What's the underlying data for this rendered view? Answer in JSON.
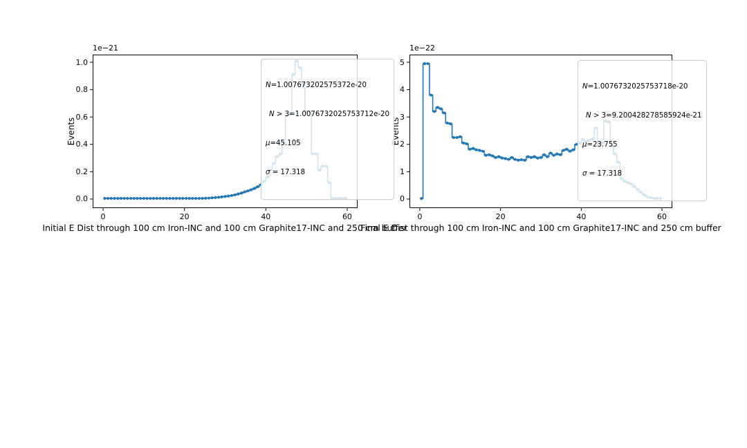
{
  "figure": {
    "background": "#ffffff",
    "accent_color": "#1f77b4"
  },
  "chart_data": [
    {
      "type": "line",
      "subtype": "step-mid-histogram-with-point-markers",
      "title": "Initial E Dist through 100 cm Iron-INC and 100 cm Graphite17-INC and 250 cm buffer",
      "ylabel": "Events",
      "xlabel": "",
      "offset_label": "1e−21",
      "color": "#1f77b4",
      "grid": false,
      "xticks": [
        0,
        20,
        40,
        60
      ],
      "yticks": [
        0.0,
        0.2,
        0.4,
        0.6,
        0.8,
        1.0
      ],
      "ytick_labels": [
        "0.0",
        "0.2",
        "0.4",
        "0.6",
        "0.8",
        "1.0"
      ],
      "xlim": [
        -2.56,
        62.56
      ],
      "ylim": [
        -0.066,
        1.056
      ],
      "x_start": 0.4,
      "bin_width": 0.8,
      "values": [
        0.005,
        0.005,
        0.005,
        0.005,
        0.005,
        0.005,
        0.005,
        0.005,
        0.005,
        0.005,
        0.005,
        0.005,
        0.005,
        0.005,
        0.005,
        0.005,
        0.005,
        0.005,
        0.005,
        0.005,
        0.005,
        0.005,
        0.005,
        0.005,
        0.005,
        0.005,
        0.005,
        0.005,
        0.005,
        0.005,
        0.005,
        0.006,
        0.007,
        0.009,
        0.011,
        0.013,
        0.016,
        0.019,
        0.022,
        0.026,
        0.031,
        0.037,
        0.044,
        0.052,
        0.06,
        0.068,
        0.078,
        0.09,
        0.105,
        0.13,
        0.16,
        0.21,
        0.26,
        0.31,
        0.33,
        0.41,
        0.61,
        0.62,
        0.91,
        1.01,
        0.96,
        0.84,
        0.64,
        0.64,
        0.33,
        0.33,
        0.21,
        0.24,
        0.24,
        0.12,
        0.005,
        0.005,
        0.005,
        0.005,
        0.005
      ],
      "legend": {
        "position": "upper-right-inside-overflowing",
        "lines": [
          {
            "sym": "N",
            "rest": "=1.007673202575372e-20"
          },
          {
            "sym": "N",
            "rest": " > 3=1.0076732025753712e-20"
          },
          {
            "sym": "μ",
            "rest": "=45.105"
          },
          {
            "sym": "σ",
            "rest": " = 17.318"
          }
        ]
      }
    },
    {
      "type": "line",
      "subtype": "step-mid-histogram-with-point-markers",
      "title": "Final E Dist through 100 cm Iron-INC and 100 cm Graphite17-INC and 250 cm buffer",
      "ylabel": "Events",
      "xlabel": "",
      "offset_label": "1e−22",
      "color": "#1f77b4",
      "grid": false,
      "xticks": [
        0,
        20,
        40,
        60
      ],
      "yticks": [
        0,
        1,
        2,
        3,
        4,
        5
      ],
      "ytick_labels": [
        "0",
        "1",
        "2",
        "3",
        "4",
        "5"
      ],
      "xlim": [
        -2.56,
        62.56
      ],
      "ylim": [
        -0.33,
        5.28
      ],
      "x_start": 0.4,
      "bin_width": 0.8,
      "values": [
        0.02,
        4.95,
        4.95,
        3.8,
        3.2,
        3.35,
        3.3,
        3.15,
        2.78,
        2.75,
        2.25,
        2.25,
        2.28,
        2.05,
        2.02,
        1.82,
        1.85,
        1.8,
        1.78,
        1.75,
        1.6,
        1.62,
        1.58,
        1.52,
        1.55,
        1.5,
        1.48,
        1.45,
        1.52,
        1.45,
        1.42,
        1.44,
        1.42,
        1.55,
        1.52,
        1.55,
        1.5,
        1.52,
        1.62,
        1.55,
        1.68,
        1.6,
        1.65,
        1.62,
        1.78,
        1.82,
        1.75,
        1.8,
        2.0,
        2.05,
        2.18,
        2.1,
        2.15,
        2.2,
        2.6,
        2.0,
        2.05,
        2.85,
        2.82,
        1.95,
        1.65,
        1.35,
        0.75,
        0.65,
        0.6,
        0.55,
        0.45,
        0.35,
        0.25,
        0.15,
        0.08,
        0.05,
        0.03,
        0.02,
        0.02
      ],
      "legend": {
        "position": "upper-right-inside",
        "lines": [
          {
            "sym": "N",
            "rest": "=1.0076732025753718e-20"
          },
          {
            "sym": "N",
            "rest": " > 3=9.200428278585924e-21"
          },
          {
            "sym": "μ",
            "rest": "=23.755"
          },
          {
            "sym": "σ",
            "rest": " = 17.318"
          }
        ]
      }
    }
  ]
}
